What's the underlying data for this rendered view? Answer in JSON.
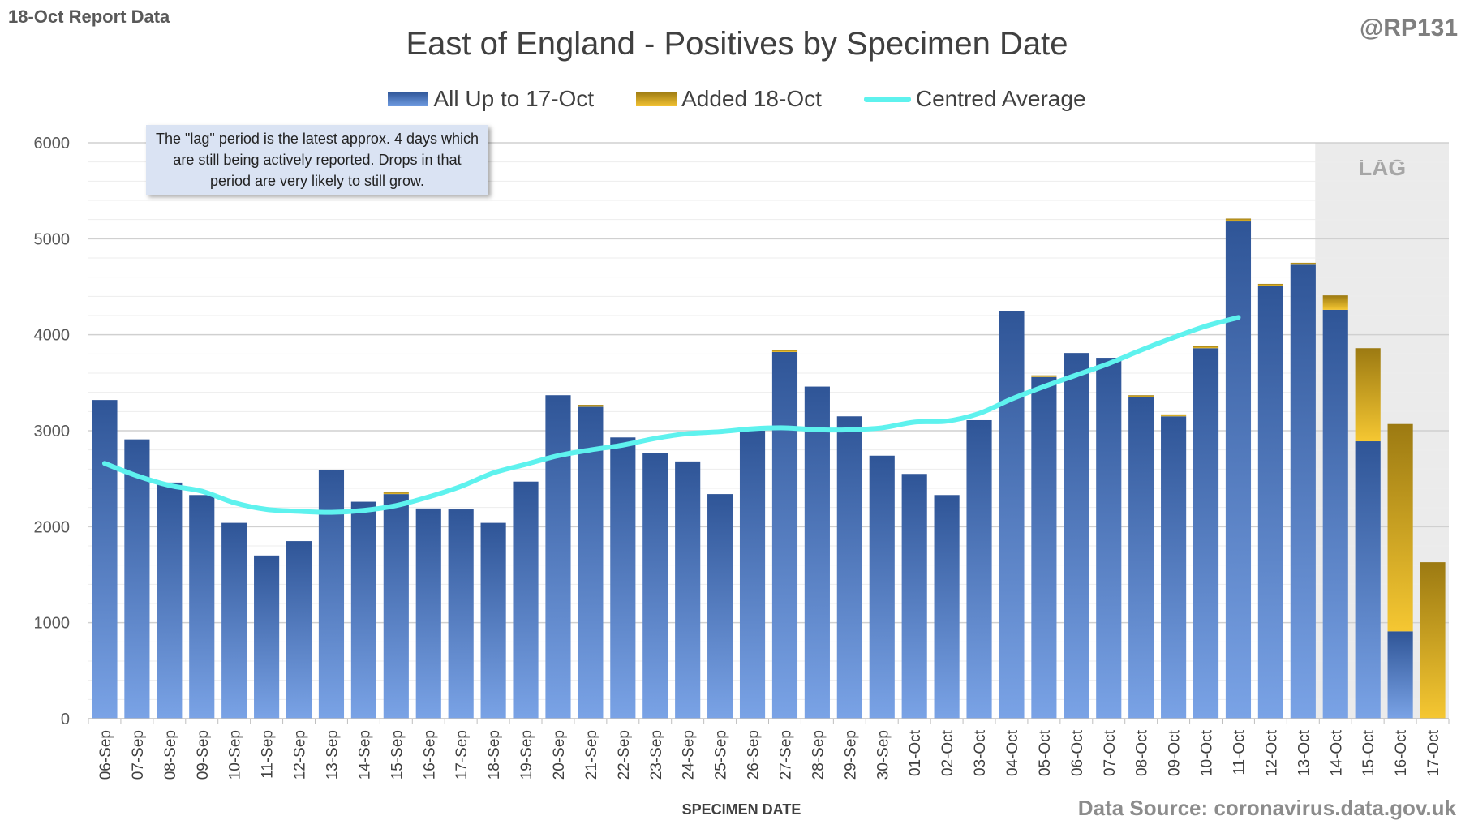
{
  "header": {
    "report_label": "18-Oct Report Data",
    "handle": "@RP131"
  },
  "annotation": {
    "text": "The \"lag\" period is the latest approx. 4 days which are still being actively reported.  Drops in that period are very likely to still grow."
  },
  "footer": {
    "source": "Data Source: coronavirus.data.gov.uk"
  },
  "colors": {
    "base_top": "#2f5597",
    "base_bottom": "#7aa3e6",
    "added_top": "#9c7a12",
    "added_bottom": "#f5c732",
    "average_line": "#5ef2ee",
    "lag_shade": "#ebebeb",
    "lag_text": "#a6a6a6"
  },
  "chart_data": {
    "type": "bar",
    "stacked": true,
    "title": "East of England - Positives by Specimen Date",
    "xlabel": "SPECIMEN DATE",
    "ylabel": "",
    "ylim": [
      0,
      6000
    ],
    "yticks": [
      0,
      1000,
      2000,
      3000,
      4000,
      5000,
      6000
    ],
    "grid": true,
    "legend_position": "top",
    "lag_label": "LAG",
    "lag_start_category": "14-Oct",
    "categories": [
      "06-Sep",
      "07-Sep",
      "08-Sep",
      "09-Sep",
      "10-Sep",
      "11-Sep",
      "12-Sep",
      "13-Sep",
      "14-Sep",
      "15-Sep",
      "16-Sep",
      "17-Sep",
      "18-Sep",
      "19-Sep",
      "20-Sep",
      "21-Sep",
      "22-Sep",
      "23-Sep",
      "24-Sep",
      "25-Sep",
      "26-Sep",
      "27-Sep",
      "28-Sep",
      "29-Sep",
      "30-Sep",
      "01-Oct",
      "02-Oct",
      "03-Oct",
      "04-Oct",
      "05-Oct",
      "06-Oct",
      "07-Oct",
      "08-Oct",
      "09-Oct",
      "10-Oct",
      "11-Oct",
      "12-Oct",
      "13-Oct",
      "14-Oct",
      "15-Oct",
      "16-Oct",
      "17-Oct"
    ],
    "series": [
      {
        "name": "All Up to 17-Oct",
        "values": [
          3320,
          2910,
          2460,
          2330,
          2040,
          1700,
          1850,
          2590,
          2260,
          2340,
          2190,
          2180,
          2040,
          2470,
          3370,
          3250,
          2930,
          2770,
          2680,
          2340,
          3000,
          3820,
          3460,
          3150,
          2740,
          2550,
          2330,
          3110,
          4250,
          3560,
          3810,
          3760,
          3350,
          3150,
          3860,
          5180,
          4510,
          4730,
          4260,
          2890,
          910,
          0
        ]
      },
      {
        "name": "Added 18-Oct",
        "values": [
          0,
          0,
          0,
          0,
          0,
          0,
          0,
          0,
          0,
          10,
          0,
          0,
          0,
          0,
          0,
          20,
          0,
          0,
          0,
          0,
          0,
          20,
          0,
          0,
          0,
          0,
          0,
          0,
          0,
          10,
          0,
          0,
          20,
          20,
          20,
          30,
          20,
          20,
          150,
          970,
          2160,
          1630
        ]
      },
      {
        "name": "Centred Average",
        "type": "line",
        "values": [
          2660,
          2530,
          2430,
          2370,
          2250,
          2180,
          2160,
          2150,
          2170,
          2220,
          2310,
          2420,
          2560,
          2650,
          2740,
          2800,
          2850,
          2920,
          2970,
          2990,
          3020,
          3030,
          3010,
          3010,
          3030,
          3090,
          3100,
          3180,
          3330,
          3460,
          3580,
          3700,
          3840,
          3970,
          4090,
          4180,
          null,
          null,
          null,
          null,
          null,
          null
        ]
      }
    ]
  }
}
